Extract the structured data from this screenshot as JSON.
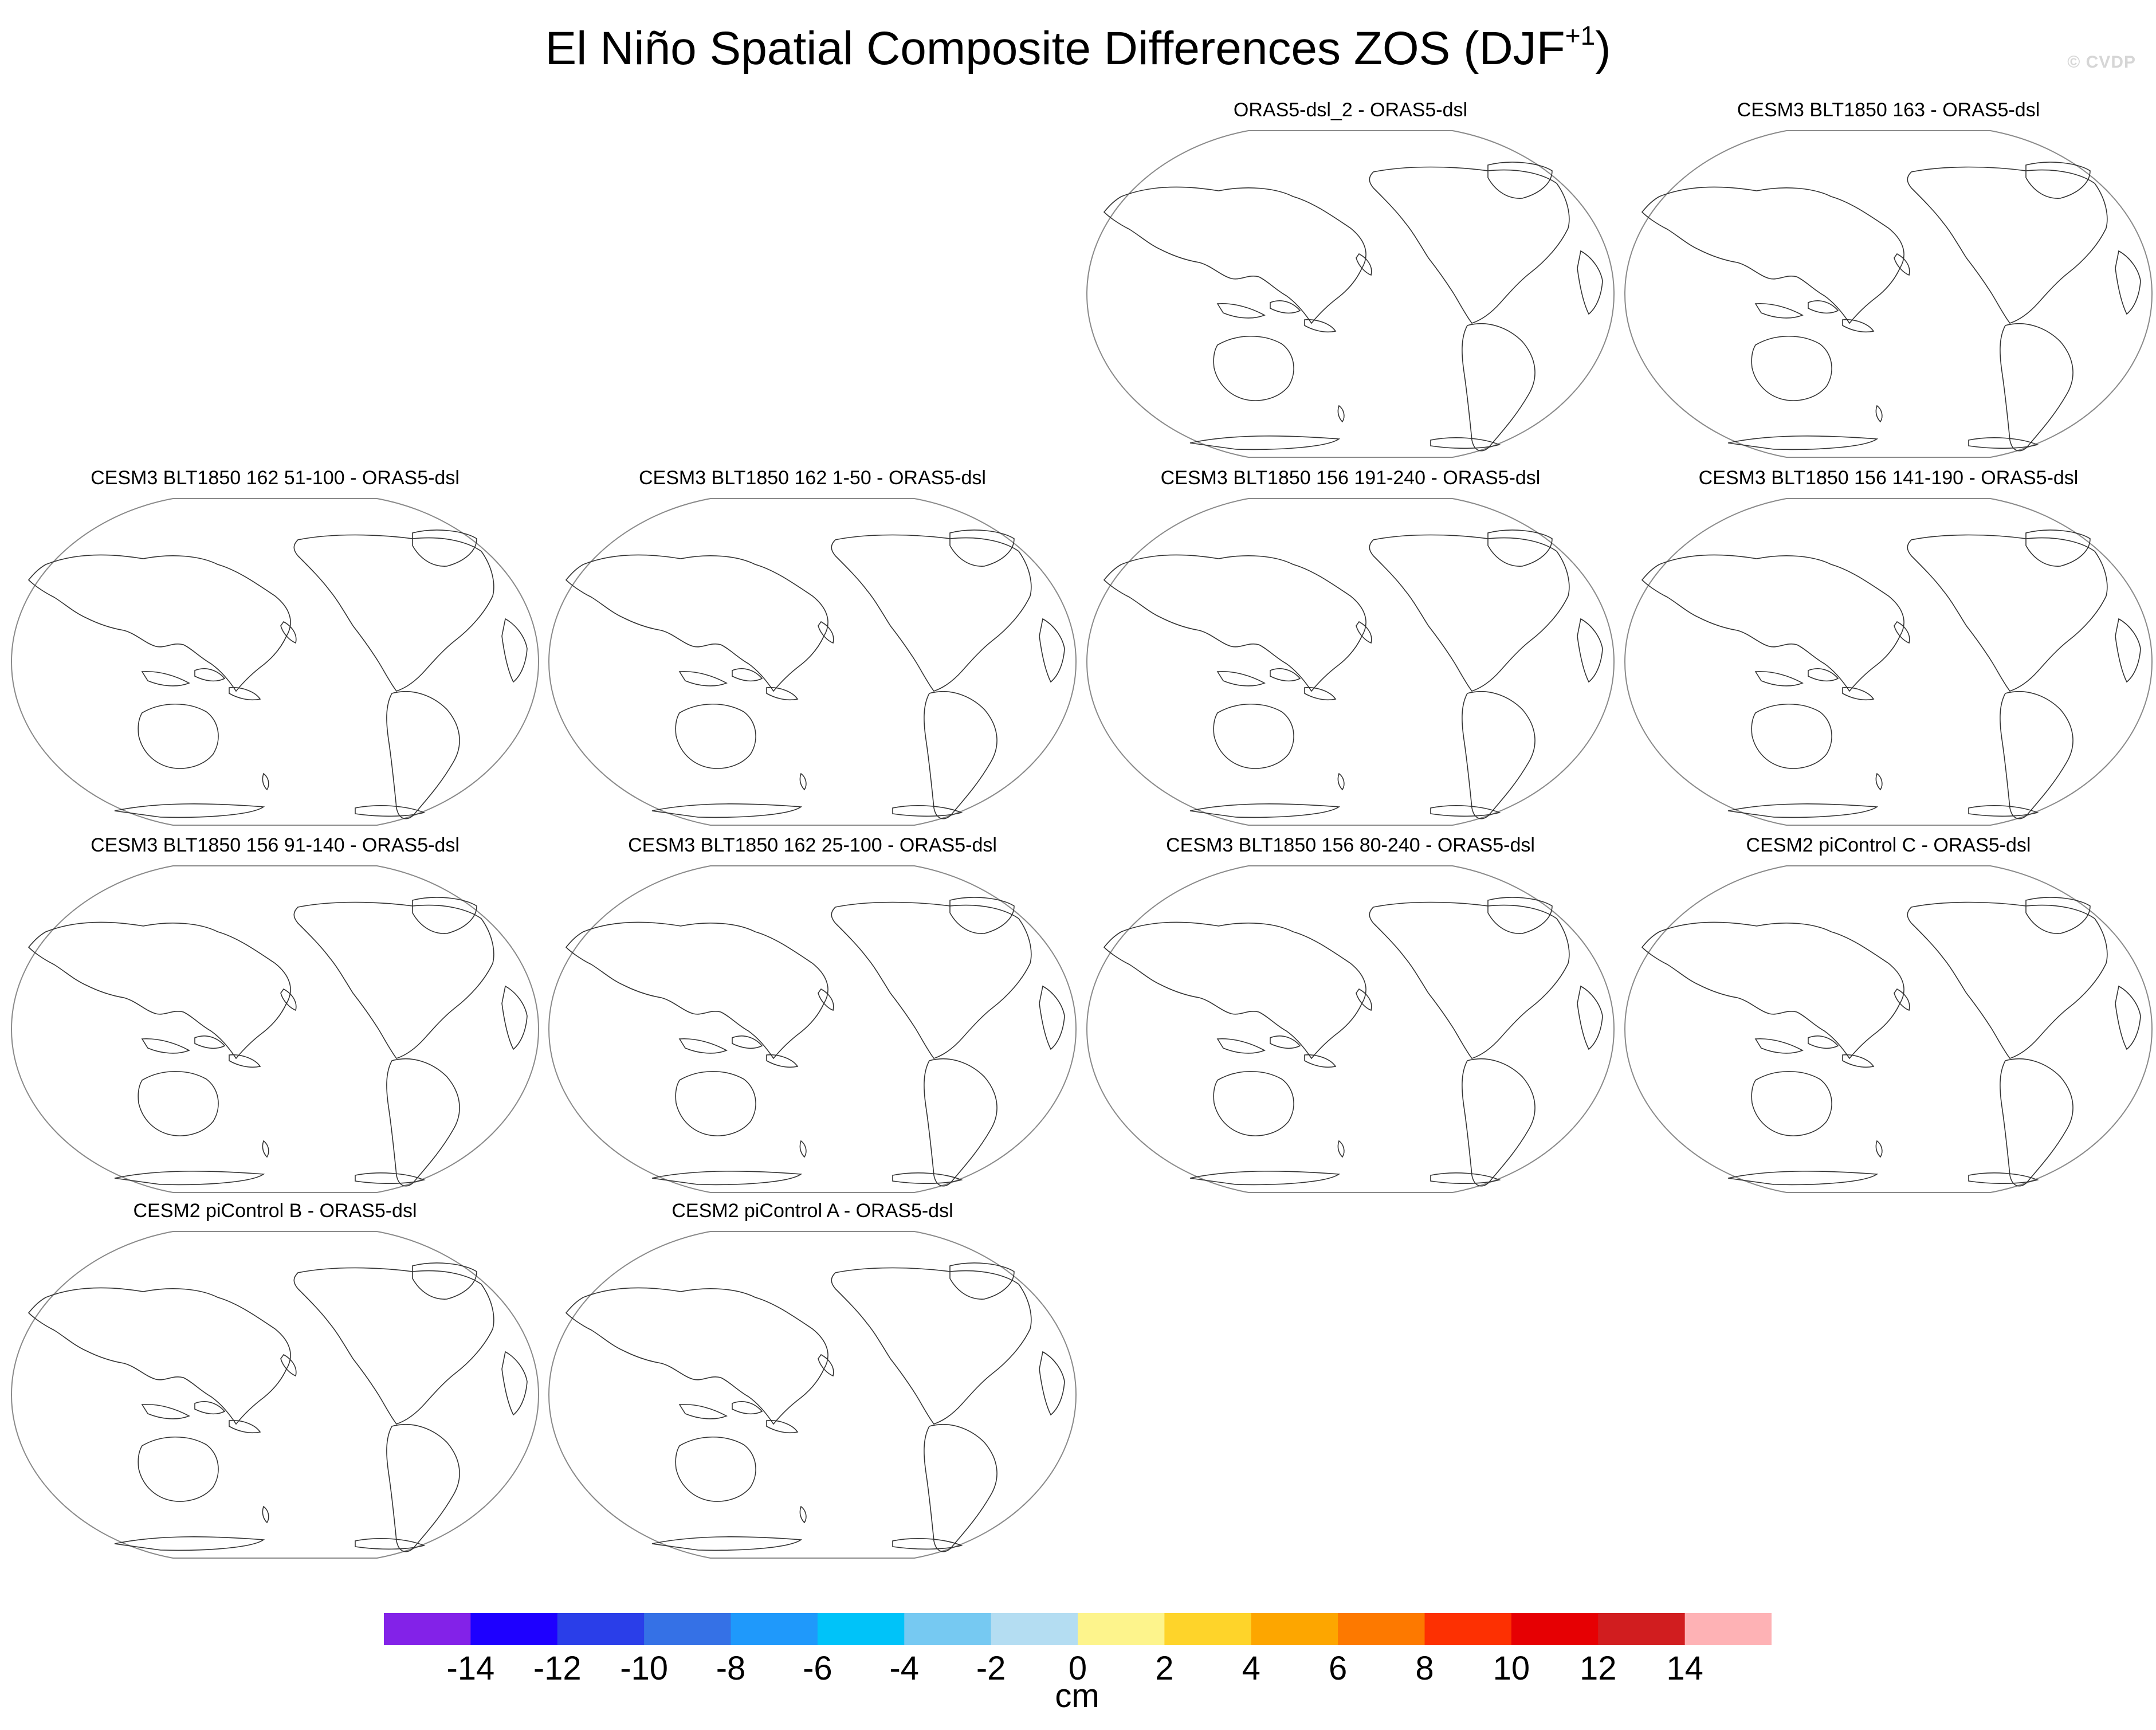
{
  "title": {
    "text": "El Niño Spatial Composite Differences ZOS (DJF",
    "superscript": "+1",
    "suffix": ")"
  },
  "watermark": "© CVDP",
  "panels": [
    {
      "title": "ORAS5-dsl_2 - ORAS5-dsl",
      "row": 0,
      "col": 2
    },
    {
      "title": "CESM3 BLT1850 163 - ORAS5-dsl",
      "row": 0,
      "col": 3
    },
    {
      "title": "CESM3 BLT1850 162 51-100 - ORAS5-dsl",
      "row": 1,
      "col": 0
    },
    {
      "title": "CESM3 BLT1850 162 1-50 - ORAS5-dsl",
      "row": 1,
      "col": 1
    },
    {
      "title": "CESM3 BLT1850 156 191-240 - ORAS5-dsl",
      "row": 1,
      "col": 2
    },
    {
      "title": "CESM3 BLT1850 156 141-190 - ORAS5-dsl",
      "row": 1,
      "col": 3
    },
    {
      "title": "CESM3 BLT1850 156 91-140 - ORAS5-dsl",
      "row": 2,
      "col": 0
    },
    {
      "title": "CESM3 BLT1850 162 25-100 - ORAS5-dsl",
      "row": 2,
      "col": 1
    },
    {
      "title": "CESM3 BLT1850 156 80-240 - ORAS5-dsl",
      "row": 2,
      "col": 2
    },
    {
      "title": "CESM2 piControl C - ORAS5-dsl",
      "row": 2,
      "col": 3
    },
    {
      "title": "CESM2 piControl B - ORAS5-dsl",
      "row": 3,
      "col": 0
    },
    {
      "title": "CESM2 piControl A - ORAS5-dsl",
      "row": 3,
      "col": 1
    }
  ],
  "colorbar": {
    "units": "cm",
    "colors": [
      "#8322e8",
      "#1e00ff",
      "#2a3ee9",
      "#3571e6",
      "#1f99fb",
      "#00c3f9",
      "#76c9f2",
      "#b4ddf2",
      "#fdf48c",
      "#fed42a",
      "#fda600",
      "#fd7900",
      "#fd3002",
      "#e60003",
      "#d11d1f",
      "#feb2b5"
    ],
    "labels": [
      "-14",
      "-12",
      "-10",
      "-8",
      "-6",
      "-4",
      "-2",
      "0",
      "2",
      "4",
      "6",
      "8",
      "10",
      "12",
      "14"
    ]
  }
}
